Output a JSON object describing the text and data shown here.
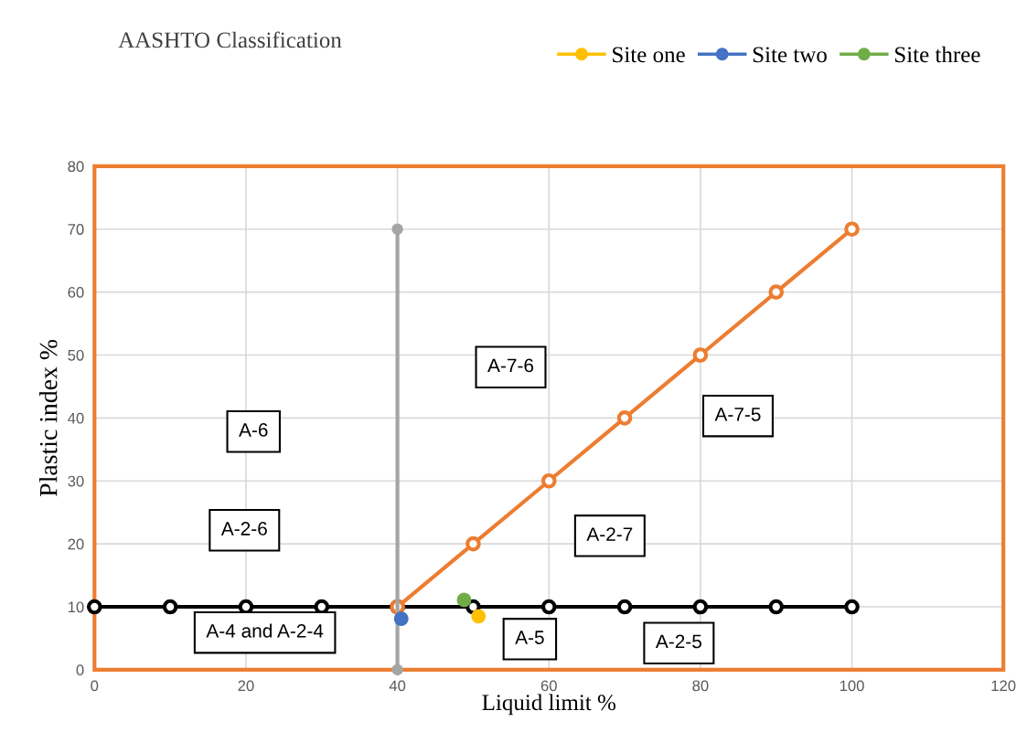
{
  "chart_data": {
    "type": "line",
    "title": "AASHTO Classification",
    "xlabel": "Liquid limit %",
    "ylabel": "Plastic index %",
    "xlim": [
      0,
      120
    ],
    "xticks": [
      0,
      20,
      40,
      60,
      80,
      100,
      120
    ],
    "ylim": [
      0,
      80
    ],
    "yticks": [
      0,
      10,
      20,
      30,
      40,
      50,
      60,
      70,
      80
    ],
    "grid": true,
    "legend": "top right",
    "marker": "circle",
    "series": [
      {
        "color": "#000000",
        "x": [
          0,
          10,
          20,
          30,
          40,
          50,
          60,
          70,
          80,
          90,
          100
        ],
        "values": [
          10,
          10,
          10,
          10,
          10,
          10,
          10,
          10,
          10,
          10,
          10
        ]
      },
      {
        "color": "#ed7d31",
        "x": [
          40,
          50,
          60,
          70,
          80,
          90,
          100
        ],
        "values": [
          10,
          20,
          30,
          40,
          50,
          60,
          70
        ]
      },
      {
        "color": "#a5a5a5",
        "x": [
          40,
          40
        ],
        "values": [
          0,
          70
        ]
      },
      {
        "name": "Site one",
        "type": "scatter",
        "color": "#ffc000",
        "x": [
          50.7
        ],
        "values": [
          8.5
        ]
      },
      {
        "name": "Site two",
        "type": "scatter",
        "color": "#4472c4",
        "x": [
          40.5
        ],
        "values": [
          8.1
        ]
      },
      {
        "name": "Site three",
        "type": "scatter",
        "color": "#70ad47",
        "x": [
          48.8
        ],
        "values": [
          11.1
        ]
      }
    ],
    "annotations": [
      "A-6",
      "A-2-6",
      "A-4 and A-2-4",
      "A-7-6",
      "A-7-5",
      "A-2-7",
      "A-5",
      "A-2-5"
    ]
  }
}
